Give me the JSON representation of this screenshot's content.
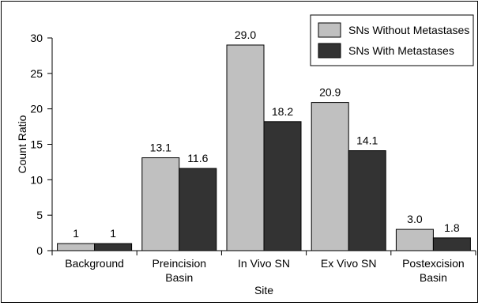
{
  "chart_data": {
    "type": "bar",
    "title": "",
    "xlabel": "Site",
    "ylabel": "Count Ratio",
    "ylim": [
      0,
      30
    ],
    "yticks": [
      0,
      5,
      10,
      15,
      20,
      25,
      30
    ],
    "grid": false,
    "legend_position": "top-right",
    "categories": [
      [
        "Background"
      ],
      [
        "Preincision",
        "Basin"
      ],
      [
        "In Vivo SN"
      ],
      [
        "Ex Vivo SN"
      ],
      [
        "Postexcision",
        "Basin"
      ]
    ],
    "series": [
      {
        "name": "SNs Without Metastases",
        "color": "#c0c0c0",
        "values": [
          1,
          13.1,
          29.0,
          20.9,
          3.0
        ],
        "labels": [
          "1",
          "13.1",
          "29.0",
          "20.9",
          "3.0"
        ]
      },
      {
        "name": "SNs With Metastases",
        "color": "#333333",
        "values": [
          1,
          11.6,
          18.2,
          14.1,
          1.8
        ],
        "labels": [
          "1",
          "11.6",
          "18.2",
          "14.1",
          "1.8"
        ]
      }
    ]
  }
}
